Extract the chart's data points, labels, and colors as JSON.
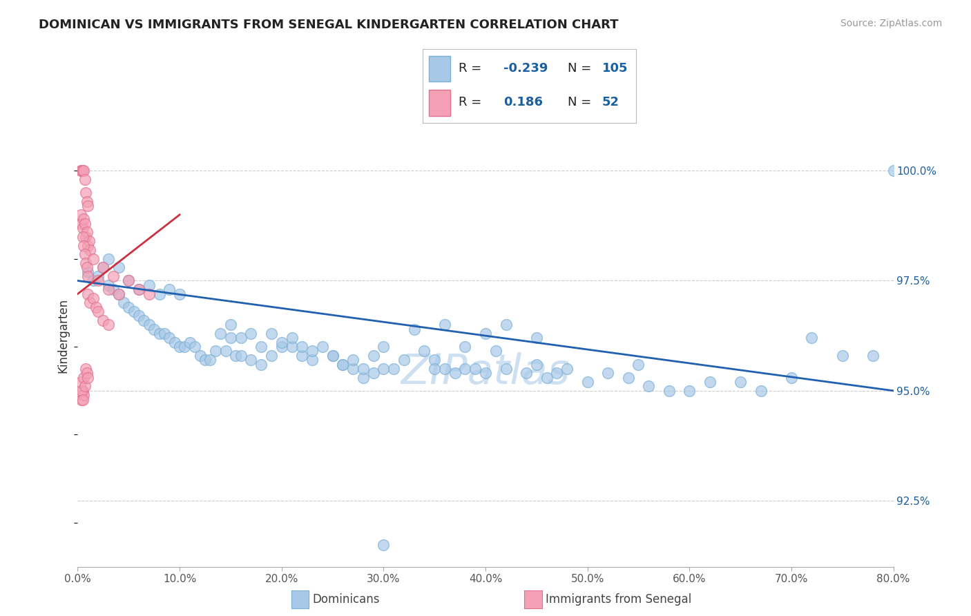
{
  "title": "DOMINICAN VS IMMIGRANTS FROM SENEGAL KINDERGARTEN CORRELATION CHART",
  "source": "Source: ZipAtlas.com",
  "ylabel": "Kindergarten",
  "legend_label1": "Dominicans",
  "legend_label2": "Immigrants from Senegal",
  "r1": -0.239,
  "n1": 105,
  "r2": 0.186,
  "n2": 52,
  "color_blue": "#a8c8e8",
  "color_blue_edge": "#7ab0d4",
  "color_pink": "#f4a0b5",
  "color_pink_edge": "#e07090",
  "color_blue_line": "#2060b0",
  "color_pink_line": "#cc3040",
  "color_text_blue": "#1a5fa0",
  "xlim": [
    0.0,
    80.0
  ],
  "ylim": [
    91.0,
    101.5
  ],
  "yticks": [
    92.5,
    95.0,
    97.5,
    100.0
  ],
  "xticks": [
    0,
    10,
    20,
    30,
    40,
    50,
    60,
    70,
    80
  ],
  "blue_line": [
    97.5,
    95.0
  ],
  "pink_line_x": [
    0.0,
    10.0
  ],
  "pink_line_y": [
    97.2,
    99.0
  ],
  "blue_x": [
    1.0,
    1.5,
    2.0,
    2.5,
    3.0,
    3.5,
    4.0,
    4.5,
    5.0,
    5.5,
    6.0,
    6.5,
    7.0,
    7.5,
    8.0,
    8.5,
    9.0,
    9.5,
    10.0,
    10.5,
    11.0,
    11.5,
    12.0,
    12.5,
    13.0,
    13.5,
    14.0,
    14.5,
    15.0,
    15.5,
    16.0,
    17.0,
    18.0,
    19.0,
    20.0,
    21.0,
    22.0,
    23.0,
    24.0,
    25.0,
    26.0,
    27.0,
    28.0,
    29.0,
    30.0,
    31.0,
    32.0,
    33.0,
    34.0,
    35.0,
    36.0,
    38.0,
    40.0,
    42.0,
    44.0,
    45.0,
    46.0,
    48.0,
    50.0,
    52.0,
    54.0,
    55.0,
    56.0,
    58.0,
    60.0,
    62.0,
    65.0,
    67.0,
    70.0,
    72.0,
    75.0,
    78.0,
    80.0,
    3.0,
    4.0,
    5.0,
    6.0,
    7.0,
    8.0,
    9.0,
    10.0,
    15.0,
    16.0,
    17.0,
    18.0,
    19.0,
    20.0,
    21.0,
    22.0,
    23.0,
    25.0,
    26.0,
    27.0,
    28.0,
    29.0,
    30.0,
    35.0,
    36.0,
    37.0,
    38.0,
    39.0,
    40.0,
    41.0,
    42.0,
    45.0,
    47.0,
    30.0
  ],
  "blue_y": [
    97.7,
    97.5,
    97.6,
    97.8,
    97.4,
    97.3,
    97.2,
    97.0,
    96.9,
    96.8,
    96.7,
    96.6,
    96.5,
    96.4,
    96.3,
    96.3,
    96.2,
    96.1,
    96.0,
    96.0,
    96.1,
    96.0,
    95.8,
    95.7,
    95.7,
    95.9,
    96.3,
    95.9,
    96.2,
    95.8,
    95.8,
    95.7,
    95.6,
    95.8,
    96.0,
    96.0,
    95.8,
    95.7,
    96.0,
    95.8,
    95.6,
    95.5,
    95.3,
    95.4,
    96.0,
    95.5,
    95.7,
    96.4,
    95.9,
    95.7,
    95.5,
    95.5,
    95.4,
    95.5,
    95.4,
    95.6,
    95.3,
    95.5,
    95.2,
    95.4,
    95.3,
    95.6,
    95.1,
    95.0,
    95.0,
    95.2,
    95.2,
    95.0,
    95.3,
    96.2,
    95.8,
    95.8,
    100.0,
    98.0,
    97.8,
    97.5,
    97.3,
    97.4,
    97.2,
    97.3,
    97.2,
    96.5,
    96.2,
    96.3,
    96.0,
    96.3,
    96.1,
    96.2,
    96.0,
    95.9,
    95.8,
    95.6,
    95.7,
    95.5,
    95.8,
    95.5,
    95.5,
    96.5,
    95.4,
    96.0,
    95.5,
    96.3,
    95.9,
    96.5,
    96.2,
    95.4,
    91.5
  ],
  "pink_x": [
    0.3,
    0.4,
    0.5,
    0.6,
    0.7,
    0.8,
    0.9,
    1.0,
    0.3,
    0.4,
    0.5,
    0.6,
    0.7,
    0.8,
    0.9,
    1.0,
    1.1,
    1.2,
    0.5,
    0.6,
    0.7,
    0.8,
    0.9,
    1.0,
    1.5,
    2.0,
    2.5,
    3.0,
    3.5,
    4.0,
    5.0,
    6.0,
    7.0,
    0.4,
    0.5,
    0.6,
    1.0,
    1.2,
    1.5,
    1.8,
    2.0,
    2.5,
    3.0,
    0.3,
    0.4,
    0.5,
    0.6,
    0.7,
    0.8,
    0.9,
    1.0
  ],
  "pink_y": [
    100.0,
    100.0,
    100.0,
    100.0,
    99.8,
    99.5,
    99.3,
    99.2,
    99.0,
    98.8,
    98.7,
    98.9,
    98.8,
    98.5,
    98.6,
    98.3,
    98.4,
    98.2,
    98.5,
    98.3,
    98.1,
    97.9,
    97.8,
    97.6,
    98.0,
    97.5,
    97.8,
    97.3,
    97.6,
    97.2,
    97.5,
    97.3,
    97.2,
    94.8,
    95.0,
    94.9,
    97.2,
    97.0,
    97.1,
    96.9,
    96.8,
    96.6,
    96.5,
    95.2,
    95.0,
    94.8,
    95.3,
    95.1,
    95.5,
    95.4,
    95.3
  ]
}
